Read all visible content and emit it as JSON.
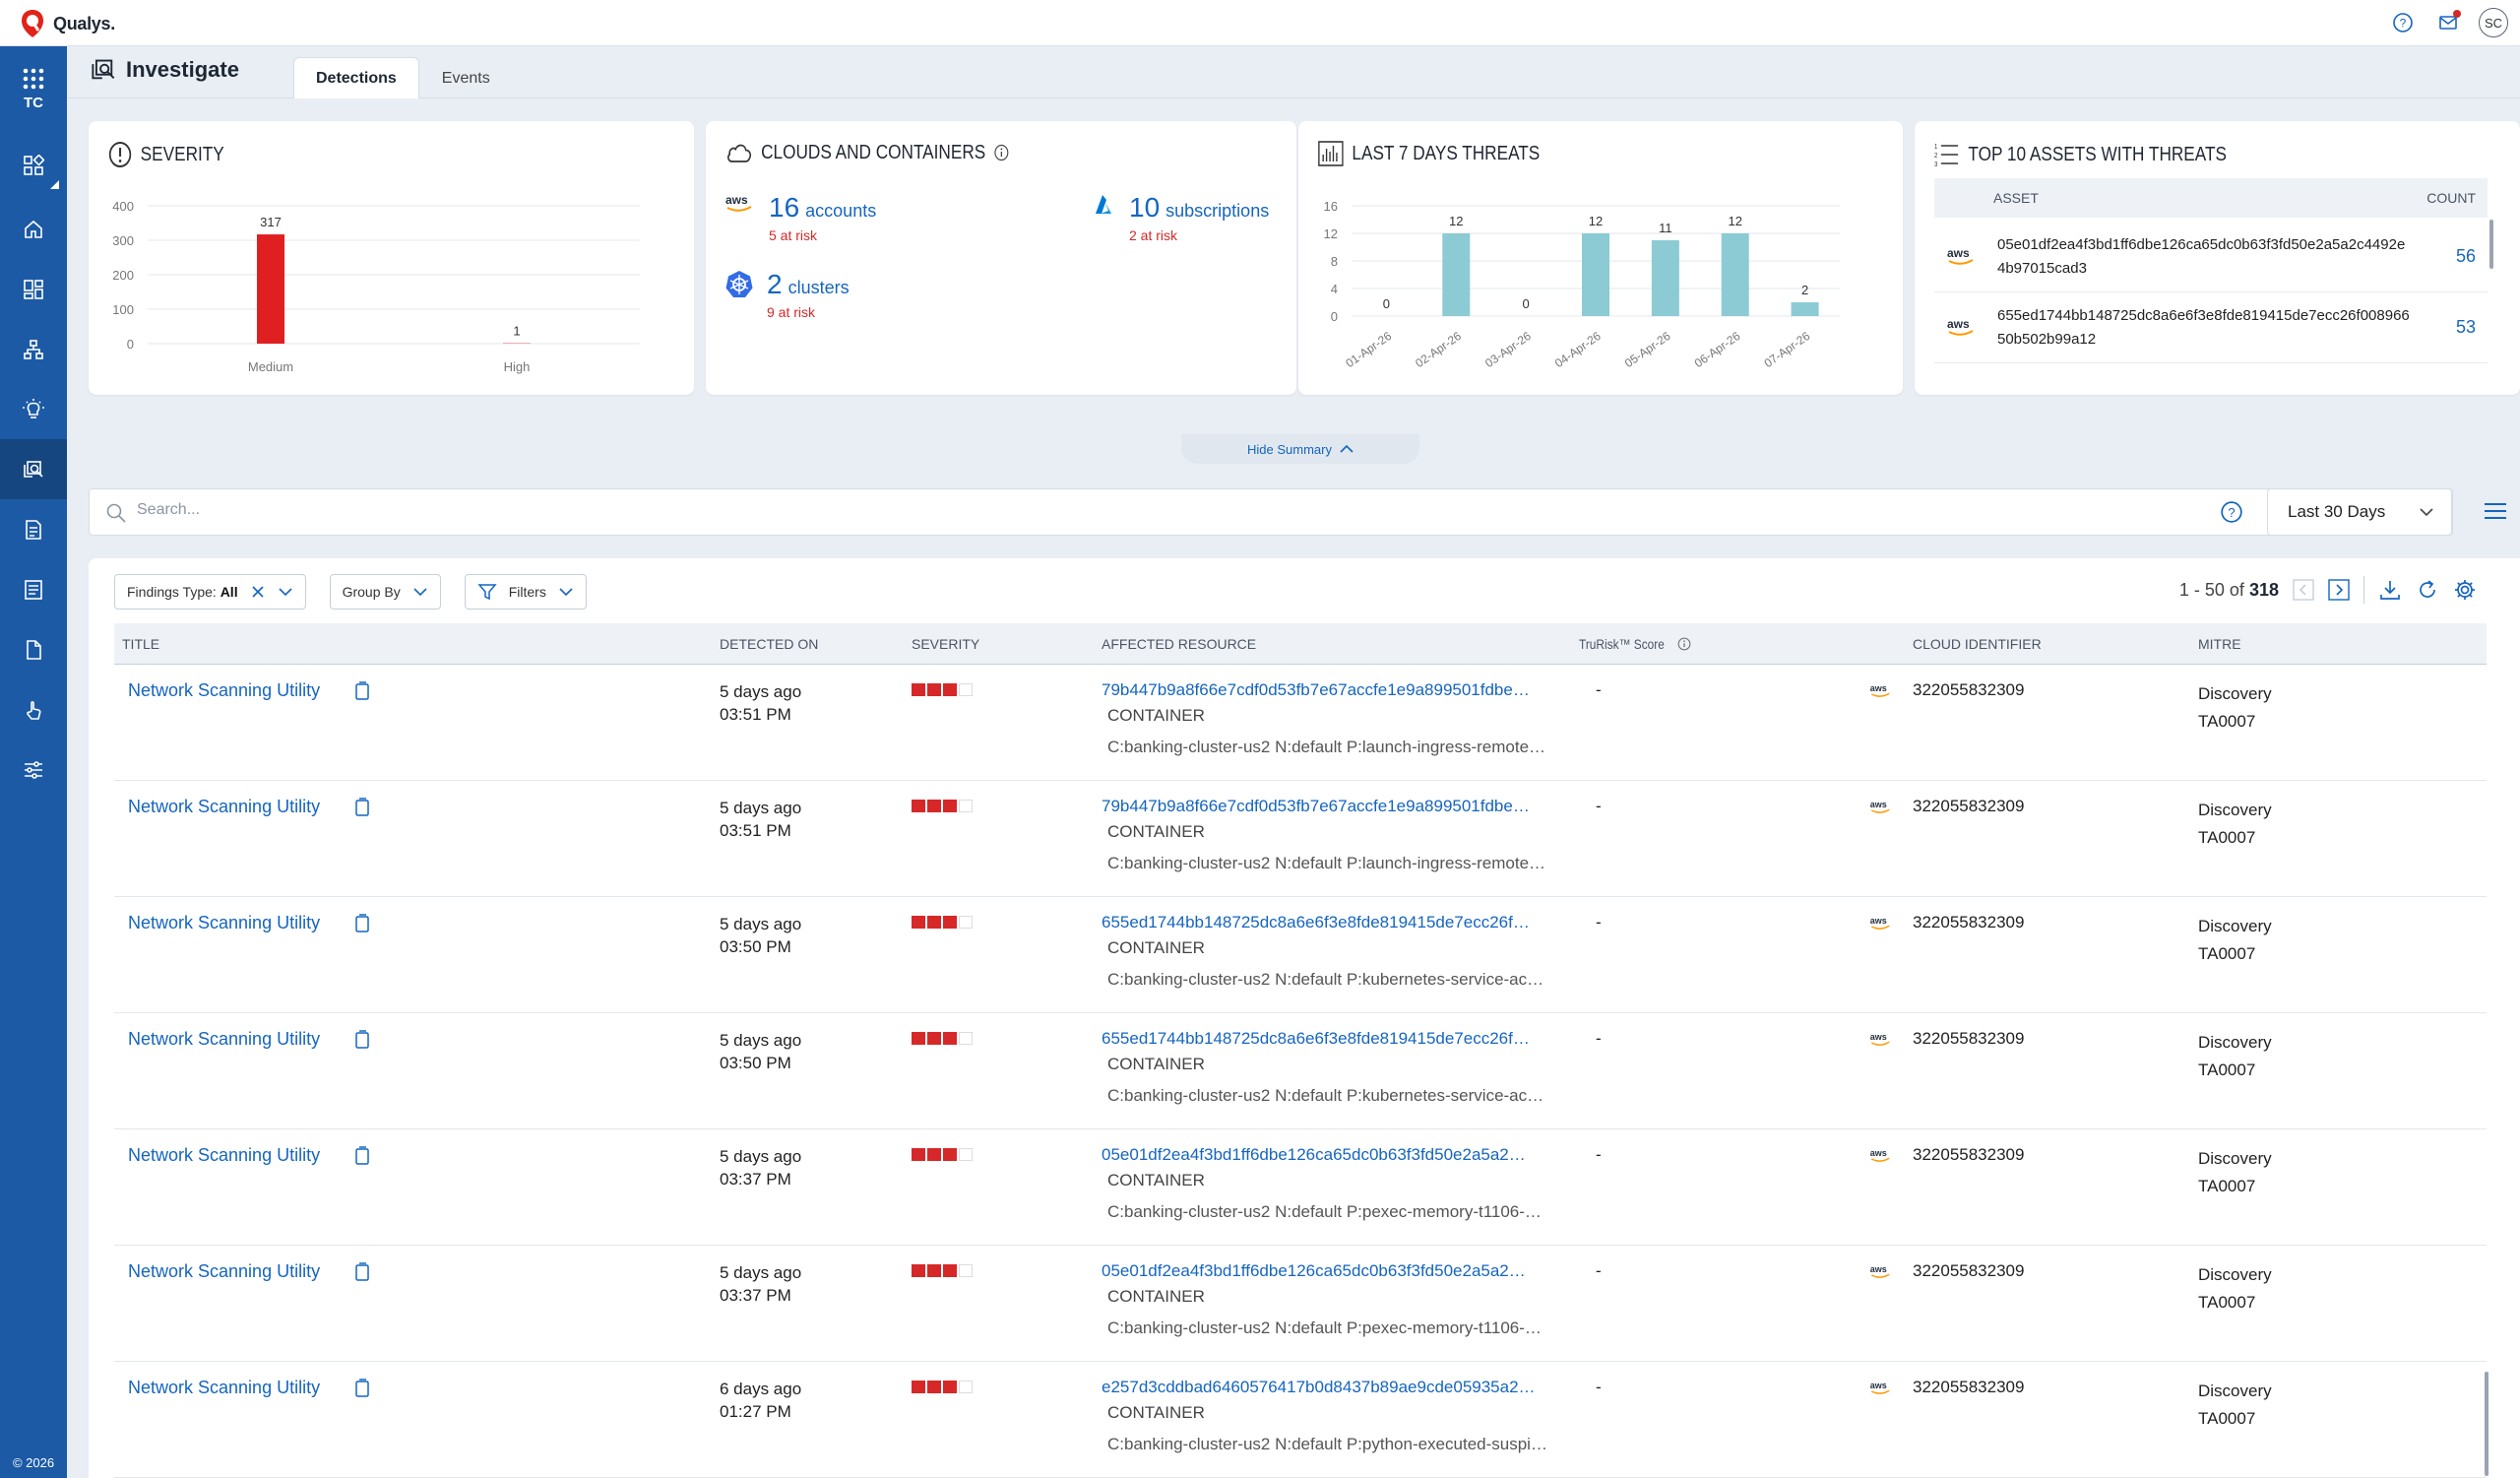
{
  "topbar": {
    "brand": "Qualys."
  },
  "sidebar": {
    "app_code": "TC",
    "copyright": "© 2026",
    "items": [
      {
        "icon": "dashboard-apps-icon"
      },
      {
        "icon": "home-icon"
      },
      {
        "icon": "widgets-icon"
      },
      {
        "icon": "hierarchy-icon"
      },
      {
        "icon": "lightbulb-icon"
      },
      {
        "icon": "investigate-icon",
        "active": true
      },
      {
        "icon": "reports-icon"
      },
      {
        "icon": "list-icon"
      },
      {
        "icon": "document-icon"
      },
      {
        "icon": "touch-icon"
      },
      {
        "icon": "sliders-icon"
      }
    ]
  },
  "header": {
    "title": "Investigate",
    "tabs": [
      {
        "label": "Detections",
        "active": true
      },
      {
        "label": "Events",
        "active": false
      }
    ]
  },
  "severity_card": {
    "title": "SEVERITY"
  },
  "clouds_card": {
    "title": "CLOUDS AND CONTAINERS",
    "accounts": {
      "count": "16",
      "label": "accounts",
      "risk": "5 at risk"
    },
    "subscriptions": {
      "count": "10",
      "label": "subscriptions",
      "risk": "2 at risk"
    },
    "clusters": {
      "count": "2",
      "label": "clusters",
      "risk": "9 at risk"
    }
  },
  "threats_card": {
    "title": "LAST 7 DAYS THREATS"
  },
  "assets_card": {
    "title": "TOP 10 ASSETS WITH THREATS",
    "col_asset": "ASSET",
    "col_count": "COUNT",
    "rows": [
      {
        "asset": "05e01df2ea4f3bd1ff6dbe126ca65dc0b63f3fd50e2a5a2c4492e4b97015cad3",
        "count": "56"
      },
      {
        "asset": "655ed1744bb148725dc8a6e6f3e8fde819415de7ecc26f00896650b502b99a12",
        "count": "53"
      }
    ]
  },
  "hide_summary": "Hide Summary",
  "search": {
    "placeholder": "Search...",
    "date_range": "Last 30 Days"
  },
  "filters": {
    "findings_type_label": "Findings Type:",
    "findings_type_value": "All",
    "group_by": "Group By",
    "filters": "Filters"
  },
  "pager": {
    "range": "1 - 50 of",
    "total": "318"
  },
  "table": {
    "columns": {
      "title": "TITLE",
      "detected_on": "DETECTED ON",
      "severity": "SEVERITY",
      "affected_resource": "AFFECTED RESOURCE",
      "trurisk": "TruRisk™ Score",
      "cloud_identifier": "CLOUD IDENTIFIER",
      "mitre": "MITRE"
    },
    "rows": [
      {
        "title": "Network Scanning Utility",
        "detected": "5 days ago",
        "time": "03:51 PM",
        "resource": "79b447b9a8f66e7cdf0d53fb7e67accfe1e9a899501fdbe…",
        "type": "CONTAINER",
        "detail": "C:banking-cluster-us2 N:default P:launch-ingress-remote…",
        "score": "-",
        "cloud_id": "322055832309",
        "tactic": "Discovery",
        "tactic_id": "TA0007"
      },
      {
        "title": "Network Scanning Utility",
        "detected": "5 days ago",
        "time": "03:51 PM",
        "resource": "79b447b9a8f66e7cdf0d53fb7e67accfe1e9a899501fdbe…",
        "type": "CONTAINER",
        "detail": "C:banking-cluster-us2 N:default P:launch-ingress-remote…",
        "score": "-",
        "cloud_id": "322055832309",
        "tactic": "Discovery",
        "tactic_id": "TA0007"
      },
      {
        "title": "Network Scanning Utility",
        "detected": "5 days ago",
        "time": "03:50 PM",
        "resource": "655ed1744bb148725dc8a6e6f3e8fde819415de7ecc26f…",
        "type": "CONTAINER",
        "detail": "C:banking-cluster-us2 N:default P:kubernetes-service-ac…",
        "score": "-",
        "cloud_id": "322055832309",
        "tactic": "Discovery",
        "tactic_id": "TA0007"
      },
      {
        "title": "Network Scanning Utility",
        "detected": "5 days ago",
        "time": "03:50 PM",
        "resource": "655ed1744bb148725dc8a6e6f3e8fde819415de7ecc26f…",
        "type": "CONTAINER",
        "detail": "C:banking-cluster-us2 N:default P:kubernetes-service-ac…",
        "score": "-",
        "cloud_id": "322055832309",
        "tactic": "Discovery",
        "tactic_id": "TA0007"
      },
      {
        "title": "Network Scanning Utility",
        "detected": "5 days ago",
        "time": "03:37 PM",
        "resource": "05e01df2ea4f3bd1ff6dbe126ca65dc0b63f3fd50e2a5a2…",
        "type": "CONTAINER",
        "detail": "C:banking-cluster-us2 N:default P:pexec-memory-t1106-…",
        "score": "-",
        "cloud_id": "322055832309",
        "tactic": "Discovery",
        "tactic_id": "TA0007"
      },
      {
        "title": "Network Scanning Utility",
        "detected": "5 days ago",
        "time": "03:37 PM",
        "resource": "05e01df2ea4f3bd1ff6dbe126ca65dc0b63f3fd50e2a5a2…",
        "type": "CONTAINER",
        "detail": "C:banking-cluster-us2 N:default P:pexec-memory-t1106-…",
        "score": "-",
        "cloud_id": "322055832309",
        "tactic": "Discovery",
        "tactic_id": "TA0007"
      },
      {
        "title": "Network Scanning Utility",
        "detected": "6 days ago",
        "time": "01:27 PM",
        "resource": "e257d3cddbad6460576417b0d8437b89ae9cde05935a2…",
        "type": "CONTAINER",
        "detail": "C:banking-cluster-us2 N:default P:python-executed-suspi…",
        "score": "-",
        "cloud_id": "322055832309",
        "tactic": "Discovery",
        "tactic_id": "TA0007"
      }
    ]
  },
  "colors": {
    "sidebar": "#1c5aa6",
    "accent": "#1565c0",
    "danger": "#d62828",
    "chart_bar": "#8ccbd4"
  },
  "chart_data": [
    {
      "type": "bar",
      "title": "SEVERITY",
      "categories": [
        "Medium",
        "High"
      ],
      "values": [
        317,
        1
      ],
      "ylim": [
        0,
        400
      ],
      "yticks": [
        0,
        100,
        200,
        300,
        400
      ],
      "color": "#e02020",
      "grid": true
    },
    {
      "type": "bar",
      "title": "LAST 7 DAYS THREATS",
      "categories": [
        "01-Apr-26",
        "02-Apr-26",
        "03-Apr-26",
        "04-Apr-26",
        "05-Apr-26",
        "06-Apr-26",
        "07-Apr-26"
      ],
      "values": [
        0,
        12,
        0,
        12,
        11,
        12,
        2
      ],
      "ylim": [
        0,
        16
      ],
      "yticks": [
        0,
        4,
        8,
        12,
        16
      ],
      "color": "#8ccbd4",
      "grid": true
    }
  ]
}
